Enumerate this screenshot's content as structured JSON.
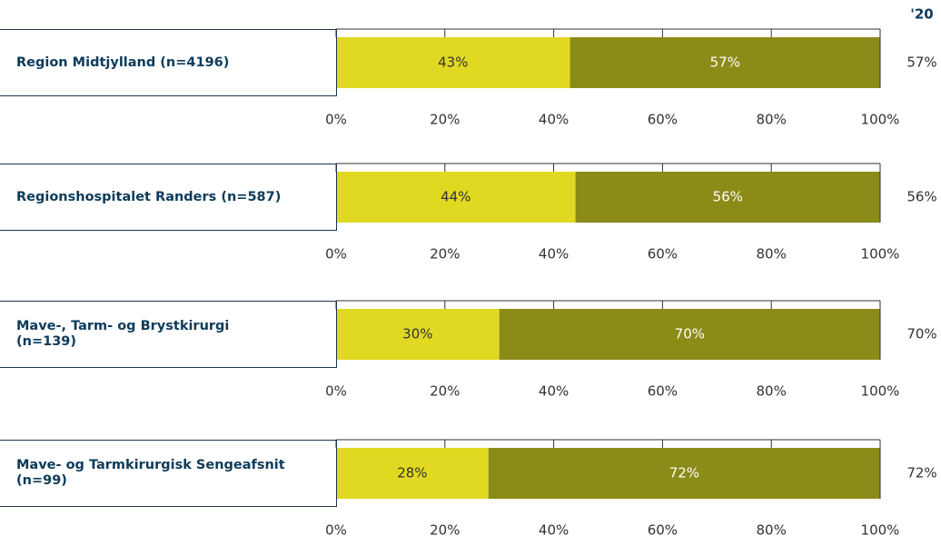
{
  "column_header": "'20",
  "chart_data": [
    {
      "type": "bar",
      "orientation": "horizontal",
      "stacked": true,
      "categories": [
        "Region Midtjylland (n=4196)"
      ],
      "series": [
        {
          "color": "#e1d821",
          "values": [
            43
          ],
          "value_labels": [
            "43%"
          ]
        },
        {
          "color": "#8b8b18",
          "values": [
            57
          ],
          "value_labels": [
            "57%"
          ]
        }
      ],
      "xlim": [
        0,
        100
      ],
      "xticks": [
        {
          "value": 0,
          "label": "0%"
        },
        {
          "value": 20,
          "label": "20%"
        },
        {
          "value": 40,
          "label": "40%"
        },
        {
          "value": 60,
          "label": "60%"
        },
        {
          "value": 80,
          "label": "80%"
        },
        {
          "value": 100,
          "label": "100%"
        }
      ],
      "comparison": 57,
      "comparison_label": "57%"
    },
    {
      "type": "bar",
      "orientation": "horizontal",
      "stacked": true,
      "categories": [
        "Regionshospitalet Randers (n=587)"
      ],
      "series": [
        {
          "color": "#e1d821",
          "values": [
            44
          ],
          "value_labels": [
            "44%"
          ]
        },
        {
          "color": "#8b8b18",
          "values": [
            56
          ],
          "value_labels": [
            "56%"
          ]
        }
      ],
      "xlim": [
        0,
        100
      ],
      "xticks": [
        {
          "value": 0,
          "label": "0%"
        },
        {
          "value": 20,
          "label": "20%"
        },
        {
          "value": 40,
          "label": "40%"
        },
        {
          "value": 60,
          "label": "60%"
        },
        {
          "value": 80,
          "label": "80%"
        },
        {
          "value": 100,
          "label": "100%"
        }
      ],
      "comparison": 56,
      "comparison_label": "56%"
    },
    {
      "type": "bar",
      "orientation": "horizontal",
      "stacked": true,
      "categories": [
        "Mave-, Tarm- og Brystkirurgi\n(n=139)"
      ],
      "series": [
        {
          "color": "#e1d821",
          "values": [
            30
          ],
          "value_labels": [
            "30%"
          ]
        },
        {
          "color": "#8b8b18",
          "values": [
            70
          ],
          "value_labels": [
            "70%"
          ]
        }
      ],
      "xlim": [
        0,
        100
      ],
      "xticks": [
        {
          "value": 0,
          "label": "0%"
        },
        {
          "value": 20,
          "label": "20%"
        },
        {
          "value": 40,
          "label": "40%"
        },
        {
          "value": 60,
          "label": "60%"
        },
        {
          "value": 80,
          "label": "80%"
        },
        {
          "value": 100,
          "label": "100%"
        }
      ],
      "comparison": 70,
      "comparison_label": "70%"
    },
    {
      "type": "bar",
      "orientation": "horizontal",
      "stacked": true,
      "categories": [
        "Mave- og Tarmkirurgisk Sengeafsnit\n(n=99)"
      ],
      "series": [
        {
          "color": "#e1d821",
          "values": [
            28
          ],
          "value_labels": [
            "28%"
          ]
        },
        {
          "color": "#8b8b18",
          "values": [
            72
          ],
          "value_labels": [
            "72%"
          ]
        }
      ],
      "xlim": [
        0,
        100
      ],
      "xticks": [
        {
          "value": 0,
          "label": "0%"
        },
        {
          "value": 20,
          "label": "20%"
        },
        {
          "value": 40,
          "label": "40%"
        },
        {
          "value": 60,
          "label": "60%"
        },
        {
          "value": 80,
          "label": "80%"
        },
        {
          "value": 100,
          "label": "100%"
        }
      ],
      "comparison": 72,
      "comparison_label": "72%"
    }
  ]
}
